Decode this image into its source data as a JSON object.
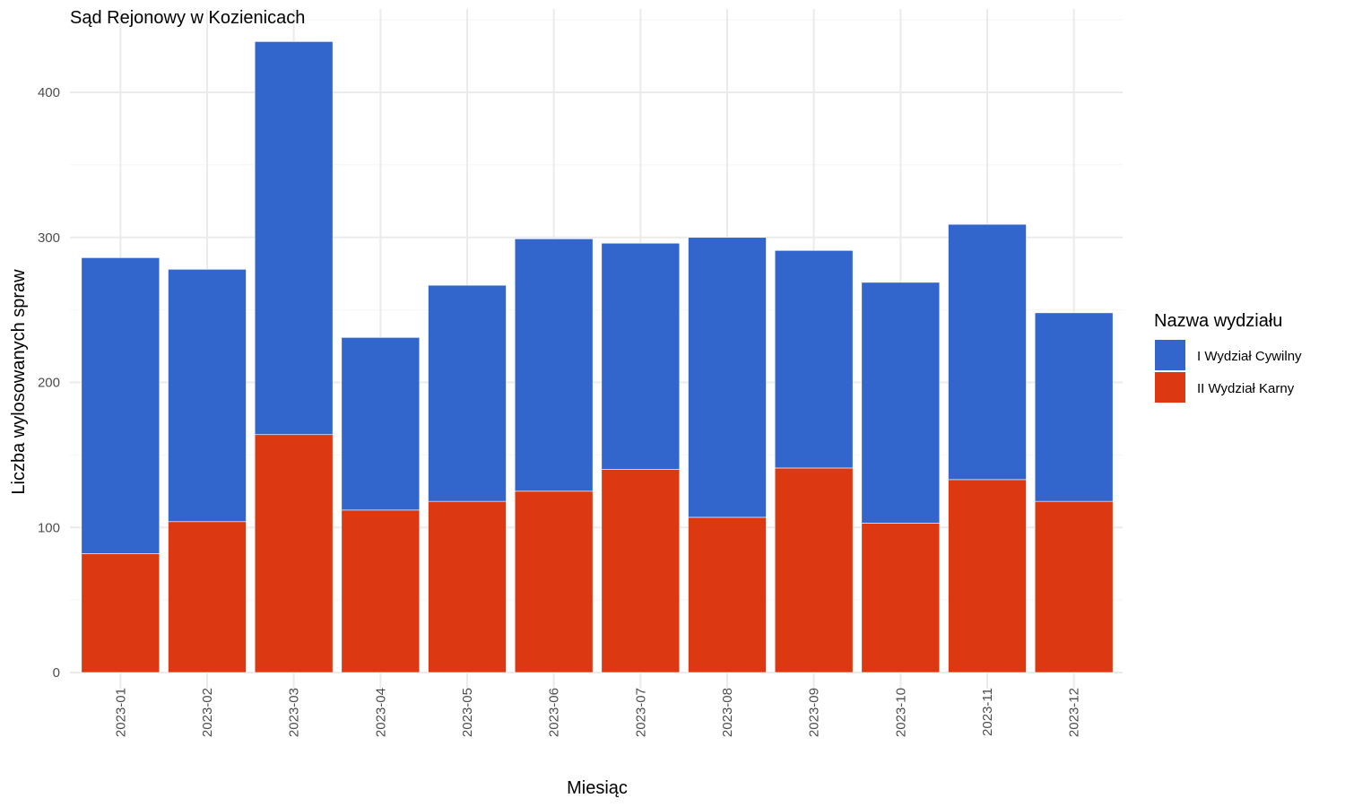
{
  "chart_data": {
    "type": "bar",
    "stacked": true,
    "title": "Sąd Rejonowy w Kozienicach",
    "xlabel": "Miesiąc",
    "ylabel": "Liczba wylosowanych spraw",
    "categories": [
      "2023-01",
      "2023-02",
      "2023-03",
      "2023-04",
      "2023-05",
      "2023-06",
      "2023-07",
      "2023-08",
      "2023-09",
      "2023-10",
      "2023-11",
      "2023-12"
    ],
    "series": [
      {
        "name": "II Wydział Karny",
        "color": "#dc3912",
        "values": [
          82,
          104,
          164,
          112,
          118,
          125,
          140,
          107,
          141,
          103,
          133,
          118
        ]
      },
      {
        "name": "I Wydział Cywilny",
        "color": "#3366cc",
        "values": [
          204,
          174,
          271,
          119,
          149,
          174,
          156,
          193,
          150,
          166,
          176,
          130
        ]
      }
    ],
    "ylim": [
      0,
      435
    ],
    "yticks": [
      0,
      100,
      200,
      300,
      400
    ],
    "grid": true,
    "legend": {
      "title": "Nazwa wydziału",
      "position": "right",
      "items": [
        {
          "label": "I Wydział Cywilny",
          "color": "#3366cc"
        },
        {
          "label": "II Wydział Karny",
          "color": "#dc3912"
        }
      ]
    }
  }
}
